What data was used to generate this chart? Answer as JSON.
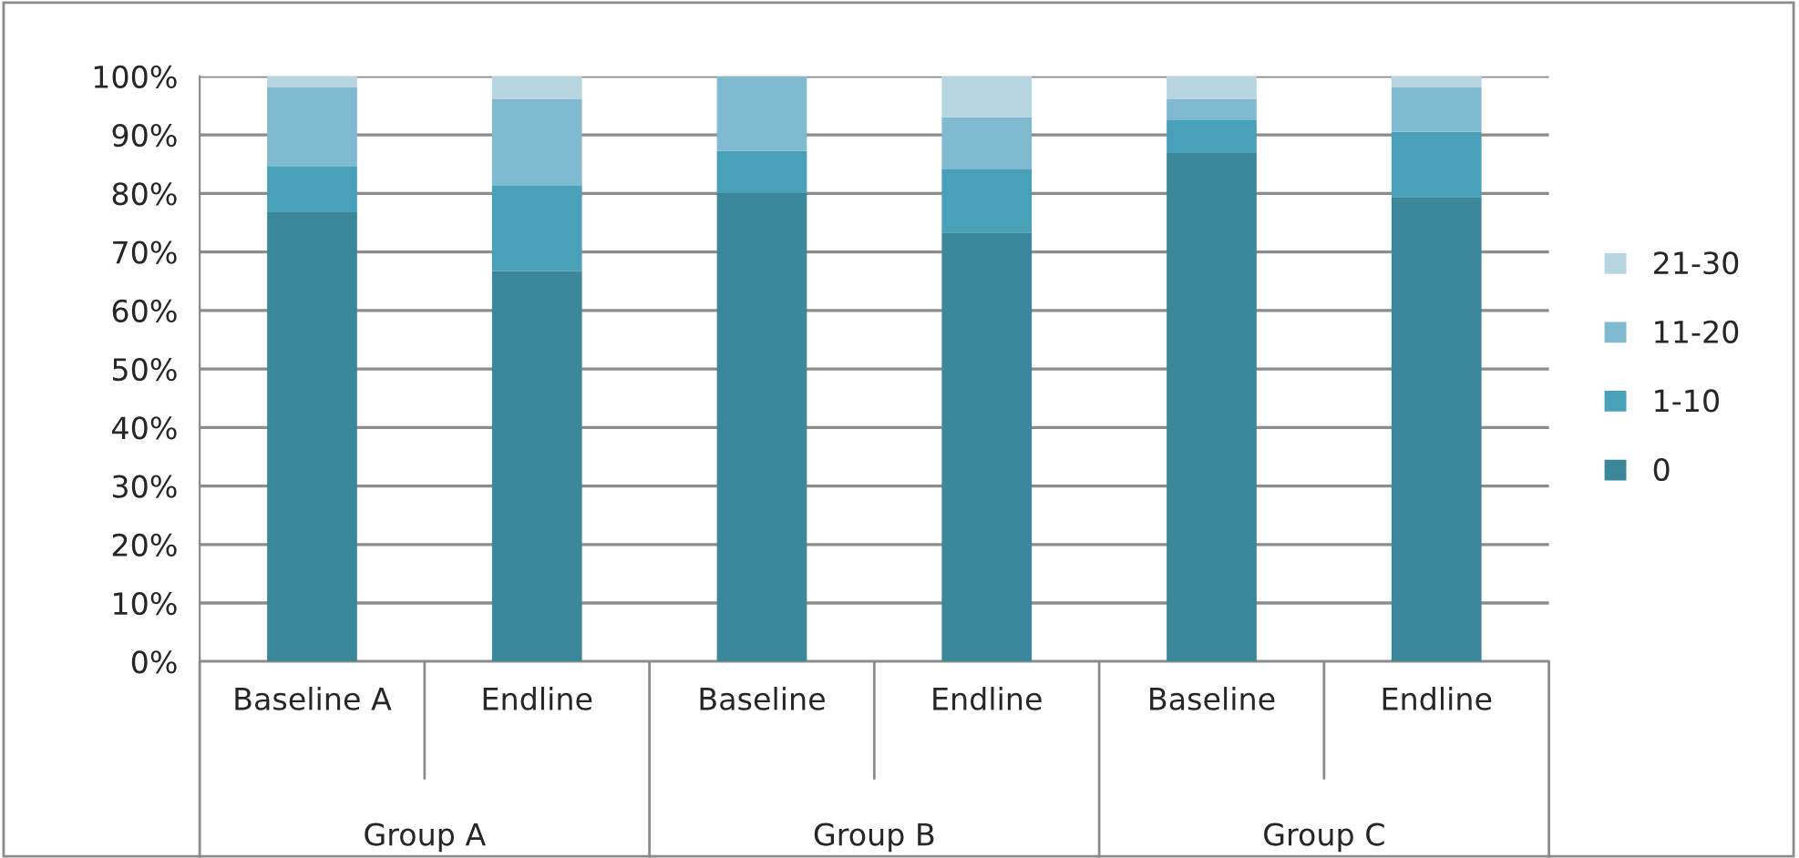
{
  "chart_data": {
    "type": "bar",
    "stacked": true,
    "categories": [
      "Baseline A",
      "Endline",
      "Baseline",
      "Endline",
      "Baseline",
      "Endline"
    ],
    "series": [
      {
        "name": "0",
        "color": "#3a879a",
        "values": [
          76.8,
          66.7,
          80.1,
          73.3,
          86.9,
          79.4
        ]
      },
      {
        "name": "1-10",
        "color": "#48a1b8",
        "values": [
          7.9,
          14.7,
          7.2,
          10.9,
          5.6,
          11.1
        ]
      },
      {
        "name": "11-20",
        "color": "#7fbad0",
        "values": [
          13.4,
          14.7,
          12.7,
          8.8,
          3.6,
          7.6
        ]
      },
      {
        "name": "21-30",
        "color": "#b7d6e2",
        "values": [
          1.9,
          3.9,
          0,
          7.0,
          3.9,
          1.9
        ]
      }
    ],
    "annotations": [
      "Group A",
      "Group B",
      "Group C"
    ],
    "ylim": [
      0,
      100
    ],
    "yticks": [
      {
        "value": 0,
        "label": "0%"
      },
      {
        "value": 10,
        "label": "10%"
      },
      {
        "value": 20,
        "label": "20%"
      },
      {
        "value": 30,
        "label": "30%"
      },
      {
        "value": 40,
        "label": "40%"
      },
      {
        "value": 50,
        "label": "50%"
      },
      {
        "value": 60,
        "label": "60%"
      },
      {
        "value": 70,
        "label": "70%"
      },
      {
        "value": 80,
        "label": "80%"
      },
      {
        "value": 90,
        "label": "90%"
      },
      {
        "value": 100,
        "label": "100%"
      }
    ],
    "grid": "y",
    "legend": "right"
  }
}
